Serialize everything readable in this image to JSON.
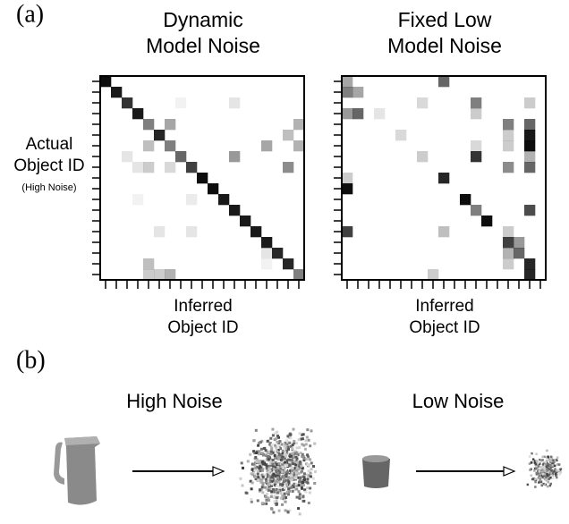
{
  "panel_labels": [
    "(a)",
    "(b)"
  ],
  "chart_data": [
    {
      "type": "heatmap",
      "title": [
        "Dynamic",
        "Model Noise"
      ],
      "y_label": [
        "Actual",
        "Object ID"
      ],
      "y_label_note": "(High Noise)",
      "x_label": [
        "Inferred",
        "Object ID"
      ],
      "x_categories": [
        null,
        null,
        null,
        null,
        null,
        null,
        null,
        null,
        null,
        null,
        null,
        null,
        null,
        null,
        null,
        null,
        null,
        null,
        null
      ],
      "y_categories": [
        null,
        null,
        null,
        null,
        null,
        null,
        null,
        null,
        null,
        null,
        null,
        null,
        null,
        null,
        null,
        null,
        null,
        null,
        null
      ],
      "color": "#000000",
      "values": [
        [
          0.95,
          0,
          0,
          0,
          0,
          0,
          0,
          0,
          0,
          0,
          0,
          0,
          0,
          0,
          0,
          0,
          0,
          0,
          0
        ],
        [
          0,
          0.9,
          0,
          0,
          0,
          0,
          0,
          0,
          0,
          0,
          0,
          0,
          0,
          0,
          0,
          0,
          0,
          0,
          0
        ],
        [
          0,
          0,
          0.8,
          0,
          0,
          0,
          0,
          0.05,
          0,
          0,
          0,
          0,
          0.1,
          0,
          0,
          0,
          0,
          0,
          0
        ],
        [
          0,
          0,
          0,
          0.9,
          0,
          0,
          0,
          0,
          0,
          0,
          0,
          0,
          0,
          0,
          0,
          0,
          0,
          0,
          0
        ],
        [
          0,
          0,
          0,
          0,
          0.5,
          0,
          0.35,
          0,
          0,
          0,
          0,
          0,
          0,
          0,
          0,
          0,
          0,
          0,
          0.3
        ],
        [
          0,
          0,
          0,
          0,
          0,
          0.85,
          0,
          0,
          0,
          0,
          0,
          0,
          0,
          0,
          0,
          0,
          0,
          0.25,
          0
        ],
        [
          0,
          0,
          0,
          0,
          0.25,
          0,
          0.5,
          0,
          0,
          0,
          0,
          0,
          0,
          0,
          0,
          0.35,
          0,
          0,
          0.3
        ],
        [
          0,
          0,
          0.1,
          0,
          0,
          0,
          0,
          0.6,
          0,
          0,
          0,
          0,
          0.4,
          0,
          0,
          0,
          0,
          0,
          0
        ],
        [
          0,
          0,
          0,
          0.1,
          0.2,
          0,
          0.15,
          0,
          0.75,
          0,
          0,
          0,
          0,
          0,
          0,
          0,
          0,
          0.45,
          0
        ],
        [
          0,
          0,
          0,
          0,
          0,
          0,
          0,
          0,
          0,
          0.95,
          0,
          0,
          0,
          0,
          0,
          0,
          0,
          0,
          0
        ],
        [
          0,
          0,
          0,
          0,
          0,
          0,
          0,
          0,
          0,
          0,
          0.95,
          0,
          0,
          0,
          0,
          0,
          0,
          0,
          0
        ],
        [
          0,
          0,
          0,
          0.05,
          0,
          0,
          0,
          0,
          0.08,
          0,
          0,
          0.9,
          0,
          0,
          0,
          0,
          0,
          0,
          0
        ],
        [
          0,
          0,
          0,
          0,
          0,
          0,
          0,
          0,
          0,
          0,
          0,
          0,
          0.9,
          0,
          0,
          0,
          0,
          0,
          0
        ],
        [
          0,
          0,
          0,
          0,
          0,
          0,
          0,
          0,
          0,
          0,
          0,
          0,
          0,
          0.9,
          0,
          0,
          0,
          0,
          0
        ],
        [
          0,
          0,
          0,
          0,
          0,
          0.1,
          0,
          0,
          0.1,
          0,
          0,
          0,
          0,
          0,
          0.9,
          0,
          0,
          0,
          0
        ],
        [
          0,
          0,
          0,
          0,
          0,
          0,
          0,
          0,
          0,
          0,
          0,
          0,
          0,
          0,
          0,
          0.9,
          0,
          0,
          0
        ],
        [
          0,
          0,
          0,
          0,
          0,
          0,
          0,
          0,
          0,
          0,
          0,
          0,
          0,
          0,
          0,
          0.1,
          0.85,
          0,
          0
        ],
        [
          0,
          0,
          0,
          0,
          0.25,
          0,
          0,
          0,
          0,
          0,
          0,
          0,
          0,
          0,
          0,
          0.05,
          0,
          0.85,
          0
        ],
        [
          0,
          0,
          0,
          0,
          0.2,
          0.2,
          0.3,
          0,
          0,
          0,
          0,
          0,
          0,
          0,
          0,
          0,
          0,
          0,
          0.5
        ]
      ]
    },
    {
      "type": "heatmap",
      "title": [
        "Fixed Low",
        "Model Noise"
      ],
      "x_label": [
        "Inferred",
        "Object ID"
      ],
      "x_categories": [
        null,
        null,
        null,
        null,
        null,
        null,
        null,
        null,
        null,
        null,
        null,
        null,
        null,
        null,
        null,
        null,
        null,
        null,
        null
      ],
      "y_categories": [
        null,
        null,
        null,
        null,
        null,
        null,
        null,
        null,
        null,
        null,
        null,
        null,
        null,
        null,
        null,
        null,
        null,
        null,
        null
      ],
      "color": "#000000",
      "values": [
        [
          0.35,
          0,
          0,
          0,
          0,
          0,
          0,
          0,
          0,
          0.6,
          0,
          0,
          0,
          0,
          0,
          0,
          0,
          0,
          0
        ],
        [
          0.5,
          0.35,
          0,
          0,
          0,
          0,
          0,
          0,
          0,
          0,
          0,
          0,
          0,
          0,
          0,
          0,
          0,
          0,
          0
        ],
        [
          0,
          0,
          0,
          0,
          0,
          0,
          0,
          0.15,
          0,
          0,
          0,
          0,
          0.5,
          0,
          0,
          0,
          0,
          0.2,
          0
        ],
        [
          0.4,
          0.6,
          0,
          0.1,
          0,
          0,
          0,
          0,
          0,
          0,
          0,
          0,
          0.2,
          0,
          0,
          0,
          0,
          0,
          0
        ],
        [
          0,
          0,
          0,
          0,
          0,
          0,
          0,
          0,
          0,
          0,
          0,
          0,
          0,
          0,
          0,
          0.5,
          0,
          0.6,
          0
        ],
        [
          0,
          0,
          0,
          0,
          0,
          0.15,
          0,
          0,
          0,
          0,
          0,
          0,
          0,
          0,
          0,
          0.2,
          0,
          0.9,
          0
        ],
        [
          0,
          0,
          0,
          0,
          0,
          0,
          0,
          0,
          0,
          0,
          0,
          0,
          0.15,
          0,
          0,
          0.2,
          0,
          0.95,
          0
        ],
        [
          0,
          0,
          0,
          0,
          0,
          0,
          0,
          0.2,
          0,
          0,
          0,
          0,
          0.8,
          0,
          0,
          0,
          0,
          0.3,
          0
        ],
        [
          0,
          0,
          0,
          0,
          0,
          0,
          0,
          0,
          0,
          0,
          0,
          0,
          0,
          0,
          0,
          0.45,
          0,
          0.6,
          0
        ],
        [
          0.2,
          0,
          0,
          0,
          0,
          0,
          0,
          0,
          0,
          0.85,
          0,
          0,
          0,
          0,
          0,
          0,
          0,
          0,
          0
        ],
        [
          0.95,
          0,
          0,
          0,
          0,
          0,
          0,
          0,
          0,
          0,
          0,
          0,
          0,
          0,
          0,
          0,
          0,
          0,
          0
        ],
        [
          0,
          0,
          0,
          0,
          0,
          0,
          0,
          0,
          0,
          0,
          0,
          0.95,
          0,
          0,
          0,
          0,
          0,
          0,
          0
        ],
        [
          0,
          0,
          0,
          0,
          0,
          0,
          0,
          0,
          0,
          0,
          0,
          0,
          0.5,
          0,
          0,
          0,
          0,
          0.7,
          0
        ],
        [
          0,
          0,
          0,
          0,
          0,
          0,
          0,
          0,
          0,
          0,
          0,
          0,
          0,
          0.95,
          0,
          0,
          0,
          0,
          0
        ],
        [
          0.75,
          0,
          0,
          0,
          0,
          0,
          0,
          0,
          0,
          0.25,
          0,
          0,
          0,
          0,
          0,
          0.2,
          0,
          0,
          0
        ],
        [
          0,
          0,
          0,
          0,
          0,
          0,
          0,
          0,
          0,
          0,
          0,
          0,
          0,
          0,
          0,
          0.75,
          0.4,
          0,
          0
        ],
        [
          0,
          0,
          0,
          0,
          0,
          0,
          0,
          0,
          0,
          0,
          0,
          0,
          0,
          0,
          0,
          0.3,
          0.6,
          0,
          0
        ],
        [
          0,
          0,
          0,
          0,
          0,
          0,
          0,
          0,
          0,
          0,
          0,
          0,
          0,
          0,
          0,
          0.2,
          0,
          0.85,
          0
        ],
        [
          0,
          0,
          0,
          0,
          0,
          0,
          0,
          0,
          0.2,
          0,
          0,
          0,
          0,
          0,
          0,
          0,
          0,
          0.85,
          0
        ]
      ]
    }
  ],
  "panel_b": {
    "captions": [
      "High Noise",
      "Low Noise"
    ]
  }
}
